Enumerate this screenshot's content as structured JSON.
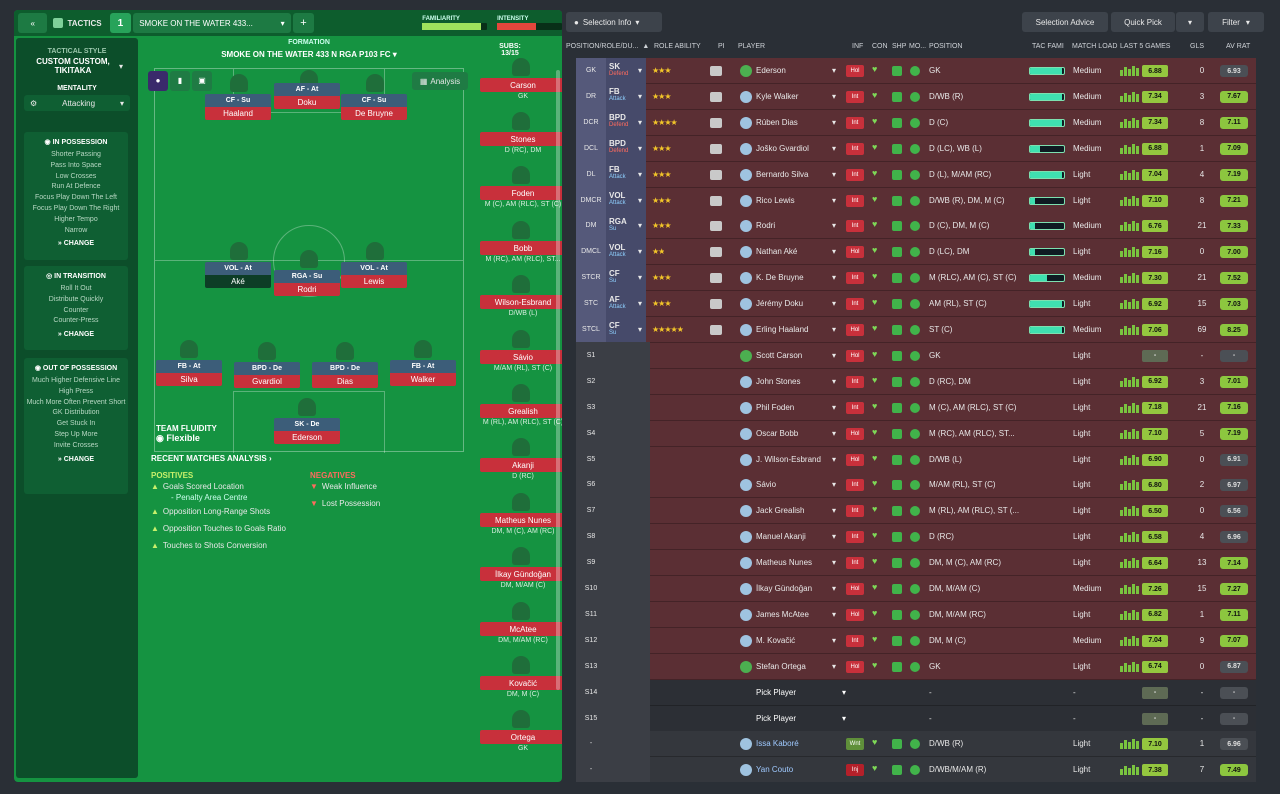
{
  "header": {
    "back_label": "«",
    "tactics_label": "TACTICS",
    "slot_number": "1",
    "tactic_name": "SMOKE ON THE WATER 433...",
    "add_label": "+",
    "familiarity_label": "FAMILIARITY",
    "intensity_label": "INTENSITY",
    "familiarity_level": 0.9,
    "intensity_level": 0.6
  },
  "left_panel": {
    "style_label": "TACTICAL STYLE",
    "style_value": "CUSTOM CUSTOM, TIKITAKA",
    "mentality_label": "MENTALITY",
    "mentality_value": "Attacking",
    "in_possession": {
      "title": "IN POSSESSION",
      "items": [
        "Shorter Passing",
        "Pass Into Space",
        "Low Crosses",
        "Run At Defence",
        "Focus Play Down The Left",
        "Focus Play Down The Right",
        "Higher Tempo",
        "Narrow"
      ],
      "change": "CHANGE"
    },
    "in_transition": {
      "title": "IN TRANSITION",
      "items": [
        "Roll It Out",
        "Distribute Quickly",
        "Counter",
        "Counter-Press"
      ],
      "change": "CHANGE"
    },
    "out_of_possession": {
      "title": "OUT OF POSSESSION",
      "items": [
        "Much Higher Defensive Line",
        "High Press",
        "Much More Often Prevent Short GK Distribution",
        "Get Stuck In",
        "Step Up More",
        "Invite Crosses"
      ],
      "change": "CHANGE"
    }
  },
  "formation": {
    "label": "FORMATION",
    "name": "SMOKE ON THE WATER 433 N RGA P103 FC",
    "analysis": "Analysis",
    "subs_label": "SUBS:",
    "subs_count": "13/15",
    "team_fluidity_label": "TEAM FLUIDITY",
    "team_fluidity_value": "Flexible",
    "players": [
      {
        "role": "CF - Su",
        "name": "Haaland"
      },
      {
        "role": "AF - At",
        "name": "Doku"
      },
      {
        "role": "CF - Su",
        "name": "De Bruyne"
      },
      {
        "role": "VOL - At",
        "name": "Aké"
      },
      {
        "role": "RGA - Su",
        "name": "Rodri"
      },
      {
        "role": "VOL - At",
        "name": "Lewis"
      },
      {
        "role": "FB - At",
        "name": "Silva"
      },
      {
        "role": "BPD - De",
        "name": "Gvardiol"
      },
      {
        "role": "BPD - De",
        "name": "Dias"
      },
      {
        "role": "FB - At",
        "name": "Walker"
      },
      {
        "role": "SK - De",
        "name": "Ederson"
      }
    ]
  },
  "subs": [
    {
      "name": "Carson",
      "pos": "GK"
    },
    {
      "name": "Stones",
      "pos": "D (RC), DM"
    },
    {
      "name": "Foden",
      "pos": "M (C), AM (RLC), ST (C)"
    },
    {
      "name": "Bobb",
      "pos": "M (RC), AM (RLC), ST..."
    },
    {
      "name": "Wilson-Esbrand",
      "pos": "D/WB (L)"
    },
    {
      "name": "Sávio",
      "pos": "M/AM (RL), ST (C)"
    },
    {
      "name": "Grealish",
      "pos": "M (RL), AM (RLC), ST (C)"
    },
    {
      "name": "Akanji",
      "pos": "D (RC)"
    },
    {
      "name": "Matheus Nunes",
      "pos": "DM, M (C), AM (RC)"
    },
    {
      "name": "İlkay Gündoğan",
      "pos": "DM, M/AM (C)"
    },
    {
      "name": "McAtee",
      "pos": "DM, M/AM (RC)"
    },
    {
      "name": "Kovačić",
      "pos": "DM, M (C)"
    },
    {
      "name": "Ortega",
      "pos": "GK"
    }
  ],
  "analysis": {
    "title": "RECENT MATCHES ANALYSIS",
    "positives_label": "POSITIVES",
    "positives": [
      "Goals Scored Location",
      "- Penalty Area Centre",
      "Opposition Long-Range Shots",
      "Opposition Touches to Goals Ratio",
      "Touches to Shots Conversion"
    ],
    "negatives_label": "NEGATIVES",
    "negatives": [
      "Weak Influence",
      "Lost Possession"
    ]
  },
  "toolbar": {
    "selection_info": "Selection Info",
    "selection_advice": "Selection Advice",
    "quick_pick": "Quick Pick",
    "filter": "Filter"
  },
  "columns": [
    "POSITION/ROLE/DU...",
    "ROLE ABILITY",
    "PI",
    "PLAYER",
    "INF",
    "CON",
    "SHP",
    "MO...",
    "POSITION",
    "TAC FAMI",
    "MATCH LOAD",
    "LAST 5 GAMES",
    "GLS",
    "AV RAT"
  ],
  "rows": [
    {
      "slot": "GK",
      "role": "SK",
      "duty": "Defend",
      "stars": "★★★",
      "player": "Ederson",
      "inf": "Hol",
      "position": "GK",
      "fam": 0.95,
      "load": "Medium",
      "rating": "6.88",
      "gls": "0",
      "avrat": "6.93"
    },
    {
      "slot": "DR",
      "role": "FB",
      "duty": "Attack",
      "stars": "★★★",
      "player": "Kyle Walker",
      "inf": "Int",
      "position": "D/WB (R)",
      "fam": 0.95,
      "load": "Medium",
      "rating": "7.34",
      "gls": "3",
      "avrat": "7.67"
    },
    {
      "slot": "DCR",
      "role": "BPD",
      "duty": "Defend",
      "stars": "★★★★",
      "player": "Rúben Dias",
      "inf": "Int",
      "position": "D (C)",
      "fam": 0.95,
      "load": "Medium",
      "rating": "7.34",
      "gls": "8",
      "avrat": "7.11"
    },
    {
      "slot": "DCL",
      "role": "BPD",
      "duty": "Defend",
      "stars": "★★★",
      "player": "Joško Gvardiol",
      "inf": "Int",
      "position": "D (LC), WB (L)",
      "fam": 0.3,
      "load": "Medium",
      "rating": "6.88",
      "gls": "1",
      "avrat": "7.09"
    },
    {
      "slot": "DL",
      "role": "FB",
      "duty": "Attack",
      "stars": "★★★",
      "player": "Bernardo Silva",
      "inf": "Int",
      "position": "D (L), M/AM (RC)",
      "fam": 0.95,
      "load": "Light",
      "rating": "7.04",
      "gls": "4",
      "avrat": "7.19"
    },
    {
      "slot": "DMCR",
      "role": "VOL",
      "duty": "Attack",
      "stars": "★★★",
      "player": "Rico Lewis",
      "inf": "Int",
      "position": "D/WB (R), DM, M (C)",
      "fam": 0.15,
      "load": "Light",
      "rating": "7.10",
      "gls": "8",
      "avrat": "7.21"
    },
    {
      "slot": "DM",
      "role": "RGA",
      "duty": "Su",
      "stars": "★★★",
      "player": "Rodri",
      "inf": "Int",
      "position": "D (C), DM, M (C)",
      "fam": 0.15,
      "load": "Medium",
      "rating": "6.76",
      "gls": "21",
      "avrat": "7.33"
    },
    {
      "slot": "DMCL",
      "role": "VOL",
      "duty": "Attack",
      "stars": "★★",
      "player": "Nathan Aké",
      "inf": "Hol",
      "position": "D (LC), DM",
      "fam": 0.15,
      "load": "Light",
      "rating": "7.16",
      "gls": "0",
      "avrat": "7.00"
    },
    {
      "slot": "STCR",
      "role": "CF",
      "duty": "Su",
      "stars": "★★★",
      "player": "K. De Bruyne",
      "inf": "Int",
      "position": "M (RLC), AM (C), ST (C)",
      "fam": 0.5,
      "load": "Medium",
      "rating": "7.30",
      "gls": "21",
      "avrat": "7.52"
    },
    {
      "slot": "STC",
      "role": "AF",
      "duty": "Attack",
      "stars": "★★★",
      "player": "Jérémy Doku",
      "inf": "Int",
      "position": "AM (RL), ST (C)",
      "fam": 0.95,
      "load": "Light",
      "rating": "6.92",
      "gls": "15",
      "avrat": "7.03"
    },
    {
      "slot": "STCL",
      "role": "CF",
      "duty": "Su",
      "stars": "★★★★★",
      "player": "Erling Haaland",
      "inf": "Hol",
      "position": "ST (C)",
      "fam": 0.95,
      "load": "Medium",
      "rating": "7.06",
      "gls": "69",
      "avrat": "8.25"
    },
    {
      "slot": "S1",
      "player": "Scott Carson",
      "inf": "Hol",
      "position": "GK",
      "load": "Light",
      "rating": "-",
      "gls": "-",
      "avrat": "-"
    },
    {
      "slot": "S2",
      "player": "John Stones",
      "inf": "Int",
      "position": "D (RC), DM",
      "load": "Light",
      "rating": "6.92",
      "gls": "3",
      "avrat": "7.01"
    },
    {
      "slot": "S3",
      "player": "Phil Foden",
      "inf": "Int",
      "position": "M (C), AM (RLC), ST (C)",
      "load": "Light",
      "rating": "7.18",
      "gls": "21",
      "avrat": "7.16"
    },
    {
      "slot": "S4",
      "player": "Oscar Bobb",
      "inf": "Hol",
      "position": "M (RC), AM (RLC), ST...",
      "load": "Light",
      "rating": "7.10",
      "gls": "5",
      "avrat": "7.19"
    },
    {
      "slot": "S5",
      "player": "J. Wilson-Esbrand",
      "inf": "Hol",
      "position": "D/WB (L)",
      "load": "Light",
      "rating": "6.90",
      "gls": "0",
      "avrat": "6.91"
    },
    {
      "slot": "S6",
      "player": "Sávio",
      "inf": "Int",
      "position": "M/AM (RL), ST (C)",
      "load": "Light",
      "rating": "6.80",
      "gls": "2",
      "avrat": "6.97"
    },
    {
      "slot": "S7",
      "player": "Jack Grealish",
      "inf": "Int",
      "position": "M (RL), AM (RLC), ST (...",
      "load": "Light",
      "rating": "6.50",
      "gls": "0",
      "avrat": "6.56"
    },
    {
      "slot": "S8",
      "player": "Manuel Akanji",
      "inf": "Int",
      "position": "D (RC)",
      "load": "Light",
      "rating": "6.58",
      "gls": "4",
      "avrat": "6.96"
    },
    {
      "slot": "S9",
      "player": "Matheus Nunes",
      "inf": "Int",
      "position": "DM, M (C), AM (RC)",
      "load": "Light",
      "rating": "6.64",
      "gls": "13",
      "avrat": "7.14"
    },
    {
      "slot": "S10",
      "player": "İlkay Gündoğan",
      "inf": "Hol",
      "position": "DM, M/AM (C)",
      "load": "Medium",
      "rating": "7.26",
      "gls": "15",
      "avrat": "7.27"
    },
    {
      "slot": "S11",
      "player": "James McAtee",
      "inf": "Hol",
      "position": "DM, M/AM (RC)",
      "load": "Light",
      "rating": "6.82",
      "gls": "1",
      "avrat": "7.11"
    },
    {
      "slot": "S12",
      "player": "M. Kovačić",
      "inf": "Int",
      "position": "DM, M (C)",
      "load": "Medium",
      "rating": "7.04",
      "gls": "9",
      "avrat": "7.07"
    },
    {
      "slot": "S13",
      "player": "Stefan Ortega",
      "inf": "Hol",
      "position": "GK",
      "load": "Light",
      "rating": "6.74",
      "gls": "0",
      "avrat": "6.87"
    },
    {
      "slot": "S14",
      "player": "Pick Player",
      "position": "-",
      "load": "-",
      "rating": "-",
      "gls": "-",
      "avrat": "-",
      "empty": true
    },
    {
      "slot": "S15",
      "player": "Pick Player",
      "position": "-",
      "load": "-",
      "rating": "-",
      "gls": "-",
      "avrat": "-",
      "empty": true
    },
    {
      "slot": "-",
      "player": "Issa Kaboré",
      "inf": "Wnt",
      "position": "D/WB (R)",
      "load": "Light",
      "rating": "7.10",
      "gls": "1",
      "avrat": "6.96",
      "grey": true
    },
    {
      "slot": "-",
      "player": "Yan Couto",
      "inf": "Inj",
      "position": "D/WB/M/AM (R)",
      "load": "Light",
      "rating": "7.38",
      "gls": "7",
      "avrat": "7.49",
      "grey": true
    }
  ]
}
